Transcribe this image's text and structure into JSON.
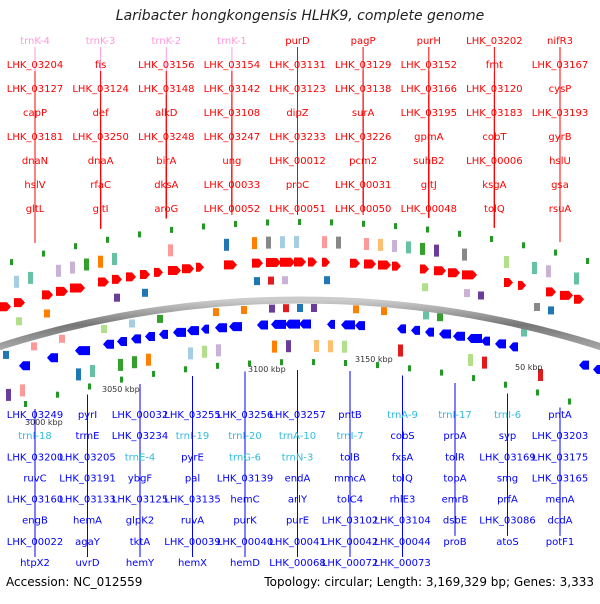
{
  "title": "Laribacter hongkongensis HLHK9, complete genome",
  "accession": "Accession: NC_012559",
  "summary": "Topology: circular; Length: 3,169,329 bp; Genes: 3,333",
  "colors": {
    "forward": "#ff0000",
    "reverse": "#0000ff",
    "trna_fwd": "#ff99dd",
    "trna_rev": "#33bbdd",
    "backbone": "#777777"
  },
  "scale_labels": [
    "3000 kbp",
    "3050 kbp",
    "3100 kbp",
    "3150 kbp",
    "50 kbp"
  ],
  "top_labels": [
    {
      "text": "trnK-4",
      "kind": "trna"
    },
    {
      "text": "trnK-3",
      "kind": "trna"
    },
    {
      "text": "trnK-2",
      "kind": "trna"
    },
    {
      "text": "trnK-1",
      "kind": "trna"
    },
    {
      "text": "purD",
      "kind": "gene"
    },
    {
      "text": "pagP",
      "kind": "gene"
    },
    {
      "text": "purH",
      "kind": "gene"
    },
    {
      "text": "LHK_03202",
      "kind": "gene"
    },
    {
      "text": "nifR3",
      "kind": "gene"
    },
    {
      "text": "LHK_03204",
      "kind": "gene"
    },
    {
      "text": "fis",
      "kind": "gene"
    },
    {
      "text": "LHK_03156",
      "kind": "gene"
    },
    {
      "text": "LHK_03154",
      "kind": "gene"
    },
    {
      "text": "LHK_03131",
      "kind": "gene"
    },
    {
      "text": "LHK_03129",
      "kind": "gene"
    },
    {
      "text": "LHK_03152",
      "kind": "gene"
    },
    {
      "text": "fmt",
      "kind": "gene"
    },
    {
      "text": "LHK_03167",
      "kind": "gene"
    },
    {
      "text": "LHK_03127",
      "kind": "gene"
    },
    {
      "text": "LHK_03124",
      "kind": "gene"
    },
    {
      "text": "LHK_03148",
      "kind": "gene"
    },
    {
      "text": "LHK_03142",
      "kind": "gene"
    },
    {
      "text": "LHK_03123",
      "kind": "gene"
    },
    {
      "text": "LHK_03138",
      "kind": "gene"
    },
    {
      "text": "LHK_03166",
      "kind": "gene"
    },
    {
      "text": "LHK_03120",
      "kind": "gene"
    },
    {
      "text": "cysP",
      "kind": "gene"
    },
    {
      "text": "capP",
      "kind": "gene"
    },
    {
      "text": "def",
      "kind": "gene"
    },
    {
      "text": "alkD",
      "kind": "gene"
    },
    {
      "text": "LHK_03108",
      "kind": "gene"
    },
    {
      "text": "dipZ",
      "kind": "gene"
    },
    {
      "text": "surA",
      "kind": "gene"
    },
    {
      "text": "LHK_03195",
      "kind": "gene"
    },
    {
      "text": "LHK_03183",
      "kind": "gene"
    },
    {
      "text": "LHK_03193",
      "kind": "gene"
    },
    {
      "text": "LHK_03181",
      "kind": "gene"
    },
    {
      "text": "LHK_03250",
      "kind": "gene"
    },
    {
      "text": "LHK_03248",
      "kind": "gene"
    },
    {
      "text": "LHK_03247",
      "kind": "gene"
    },
    {
      "text": "LHK_03233",
      "kind": "gene"
    },
    {
      "text": "LHK_03226",
      "kind": "gene"
    },
    {
      "text": "gpmA",
      "kind": "gene"
    },
    {
      "text": "cobT",
      "kind": "gene"
    },
    {
      "text": "gyrB",
      "kind": "gene"
    },
    {
      "text": "dnaN",
      "kind": "gene"
    },
    {
      "text": "dnaA",
      "kind": "gene"
    },
    {
      "text": "birA",
      "kind": "gene"
    },
    {
      "text": "ung",
      "kind": "gene"
    },
    {
      "text": "LHK_00012",
      "kind": "gene"
    },
    {
      "text": "pcm2",
      "kind": "gene"
    },
    {
      "text": "suhB2",
      "kind": "gene"
    },
    {
      "text": "LHK_00006",
      "kind": "gene"
    },
    {
      "text": "hslU",
      "kind": "gene"
    },
    {
      "text": "hslV",
      "kind": "gene"
    },
    {
      "text": "rfaC",
      "kind": "gene"
    },
    {
      "text": "dksA",
      "kind": "gene"
    },
    {
      "text": "LHK_00033",
      "kind": "gene"
    },
    {
      "text": "proC",
      "kind": "gene"
    },
    {
      "text": "LHK_00031",
      "kind": "gene"
    },
    {
      "text": "gltJ",
      "kind": "gene"
    },
    {
      "text": "ksgA",
      "kind": "gene"
    },
    {
      "text": "gsa",
      "kind": "gene"
    },
    {
      "text": "gltL",
      "kind": "gene"
    },
    {
      "text": "gltI",
      "kind": "gene"
    },
    {
      "text": "aroG",
      "kind": "gene"
    },
    {
      "text": "LHK_00052",
      "kind": "gene"
    },
    {
      "text": "LHK_00051",
      "kind": "gene"
    },
    {
      "text": "LHK_00050",
      "kind": "gene"
    },
    {
      "text": "LHK_00048",
      "kind": "gene"
    },
    {
      "text": "tolQ",
      "kind": "gene"
    },
    {
      "text": "rsuA",
      "kind": "gene"
    }
  ],
  "bottom_labels": [
    {
      "text": "LHK_03249",
      "kind": "gene"
    },
    {
      "text": "pyrI",
      "kind": "gene"
    },
    {
      "text": "LHK_00032",
      "kind": "gene"
    },
    {
      "text": "LHK_03255",
      "kind": "gene"
    },
    {
      "text": "LHK_03256",
      "kind": "gene"
    },
    {
      "text": "LHK_03257",
      "kind": "gene"
    },
    {
      "text": "pntB",
      "kind": "gene"
    },
    {
      "text": "trnA-9",
      "kind": "trna"
    },
    {
      "text": "trnI-17",
      "kind": "trna"
    },
    {
      "text": "trnI-6",
      "kind": "trna"
    },
    {
      "text": "pntA",
      "kind": "gene"
    },
    {
      "text": "trnI-18",
      "kind": "trna"
    },
    {
      "text": "trmE",
      "kind": "gene"
    },
    {
      "text": "LHK_03234",
      "kind": "gene"
    },
    {
      "text": "trnI-19",
      "kind": "trna"
    },
    {
      "text": "trnI-20",
      "kind": "trna"
    },
    {
      "text": "trnA-10",
      "kind": "trna"
    },
    {
      "text": "trnI-7",
      "kind": "trna"
    },
    {
      "text": "cobS",
      "kind": "gene"
    },
    {
      "text": "proA",
      "kind": "gene"
    },
    {
      "text": "syp",
      "kind": "gene"
    },
    {
      "text": "LHK_03203",
      "kind": "gene"
    },
    {
      "text": "LHK_03200",
      "kind": "gene"
    },
    {
      "text": "LHK_03205",
      "kind": "gene"
    },
    {
      "text": "trnE-4",
      "kind": "trna"
    },
    {
      "text": "pyrE",
      "kind": "gene"
    },
    {
      "text": "trnG-6",
      "kind": "trna"
    },
    {
      "text": "trnN-3",
      "kind": "trna"
    },
    {
      "text": "tolB",
      "kind": "gene"
    },
    {
      "text": "fxsA",
      "kind": "gene"
    },
    {
      "text": "tolR",
      "kind": "gene"
    },
    {
      "text": "LHK_03169",
      "kind": "gene"
    },
    {
      "text": "LHK_03175",
      "kind": "gene"
    },
    {
      "text": "ruvC",
      "kind": "gene"
    },
    {
      "text": "LHK_03191",
      "kind": "gene"
    },
    {
      "text": "ybgF",
      "kind": "gene"
    },
    {
      "text": "pal",
      "kind": "gene"
    },
    {
      "text": "LHK_03139",
      "kind": "gene"
    },
    {
      "text": "endA",
      "kind": "gene"
    },
    {
      "text": "mmcA",
      "kind": "gene"
    },
    {
      "text": "tolQ",
      "kind": "gene"
    },
    {
      "text": "topA",
      "kind": "gene"
    },
    {
      "text": "smg",
      "kind": "gene"
    },
    {
      "text": "LHK_03165",
      "kind": "gene"
    },
    {
      "text": "LHK_03160",
      "kind": "gene"
    },
    {
      "text": "LHK_03133",
      "kind": "gene"
    },
    {
      "text": "LHK_03125",
      "kind": "gene"
    },
    {
      "text": "LHK_03135",
      "kind": "gene"
    },
    {
      "text": "hemC",
      "kind": "gene"
    },
    {
      "text": "arlY",
      "kind": "gene"
    },
    {
      "text": "tolC4",
      "kind": "gene"
    },
    {
      "text": "rhlE3",
      "kind": "gene"
    },
    {
      "text": "emrB",
      "kind": "gene"
    },
    {
      "text": "prfA",
      "kind": "gene"
    },
    {
      "text": "menA",
      "kind": "gene"
    },
    {
      "text": "engB",
      "kind": "gene"
    },
    {
      "text": "hemA",
      "kind": "gene"
    },
    {
      "text": "glpK2",
      "kind": "gene"
    },
    {
      "text": "ruvA",
      "kind": "gene"
    },
    {
      "text": "purK",
      "kind": "gene"
    },
    {
      "text": "purE",
      "kind": "gene"
    },
    {
      "text": "LHK_03102",
      "kind": "gene"
    },
    {
      "text": "LHK_03104",
      "kind": "gene"
    },
    {
      "text": "dsbE",
      "kind": "gene"
    },
    {
      "text": "LHK_03086",
      "kind": "gene"
    },
    {
      "text": "dcdA",
      "kind": "gene"
    },
    {
      "text": "LHK_00022",
      "kind": "gene"
    },
    {
      "text": "agaY",
      "kind": "gene"
    },
    {
      "text": "tktA",
      "kind": "gene"
    },
    {
      "text": "LHK_00039",
      "kind": "gene"
    },
    {
      "text": "LHK_00040",
      "kind": "gene"
    },
    {
      "text": "LHK_00041",
      "kind": "gene"
    },
    {
      "text": "LHK_00042",
      "kind": "gene"
    },
    {
      "text": "LHK_00044",
      "kind": "gene"
    },
    {
      "text": "proB",
      "kind": "gene"
    },
    {
      "text": "atoS",
      "kind": "gene"
    },
    {
      "text": "potF1",
      "kind": "gene"
    },
    {
      "text": "htpX2",
      "kind": "gene"
    },
    {
      "text": "uvrD",
      "kind": "gene"
    },
    {
      "text": "hemY",
      "kind": "gene"
    },
    {
      "text": "hemX",
      "kind": "gene"
    },
    {
      "text": "hemD",
      "kind": "gene"
    },
    {
      "text": "LHK_00068",
      "kind": "gene"
    },
    {
      "text": "LHK_00072",
      "kind": "gene"
    },
    {
      "text": "LHK_00073",
      "kind": "gene"
    }
  ]
}
